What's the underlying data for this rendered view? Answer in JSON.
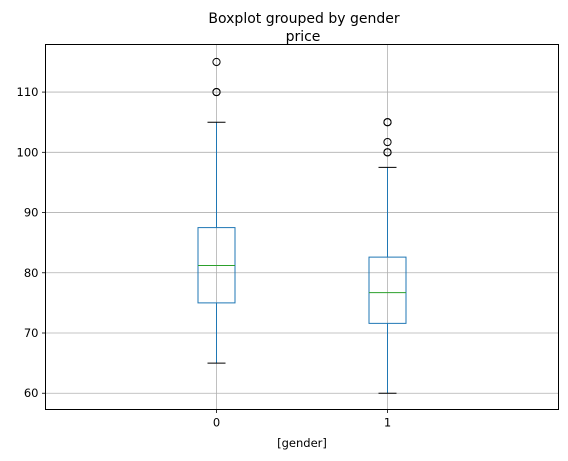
{
  "chart_data": {
    "type": "boxplot",
    "suptitle": "Boxplot grouped by gender",
    "title": "price",
    "xlabel": "[gender]",
    "ylabel": "",
    "categories": [
      "0",
      "1"
    ],
    "ylim": [
      57.3,
      117.9
    ],
    "yticks": [
      "60",
      "70",
      "80",
      "90",
      "100",
      "110"
    ],
    "grid": true,
    "colors": {
      "box": "#1f77b4",
      "median": "#2ca02c",
      "grid": "#b0b0b0",
      "whisker_cap": "#000000",
      "outlier": "#000000"
    },
    "boxes": [
      {
        "category": "0",
        "whisker_low": 65,
        "q1": 75,
        "median": 81.2,
        "q3": 87.5,
        "whisker_high": 105,
        "outliers": [
          110,
          110,
          115
        ]
      },
      {
        "category": "1",
        "whisker_low": 60,
        "q1": 71.6,
        "median": 76.7,
        "q3": 82.6,
        "whisker_high": 97.5,
        "outliers": [
          100,
          100,
          101.7,
          105,
          105
        ]
      }
    ]
  }
}
